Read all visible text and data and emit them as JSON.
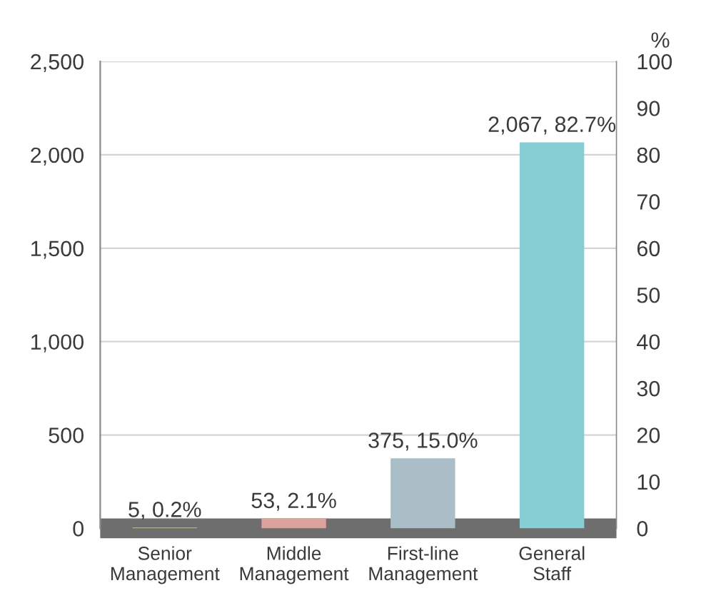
{
  "chart_data": {
    "type": "bar",
    "categories": [
      "Senior\nManagement",
      "Middle\nManagement",
      "First-line\nManagement",
      "General\nStaff"
    ],
    "values": [
      5,
      53,
      375,
      2067
    ],
    "colors": [
      "#b9bd3c",
      "#dda29c",
      "#a9bec6",
      "#86ced3"
    ],
    "value_labels": [
      "5, 0.2%",
      "53, 2.1%",
      "375, 15.0%",
      "2,067, 82.7%"
    ],
    "ylim": [
      0,
      2500
    ],
    "yticks": [
      {
        "value": 0,
        "label": "0"
      },
      {
        "value": 500,
        "label": "500"
      },
      {
        "value": 1000,
        "label": "1,000"
      },
      {
        "value": 1500,
        "label": "1,500"
      },
      {
        "value": 2000,
        "label": "2,000"
      },
      {
        "value": 2500,
        "label": "2,500"
      }
    ],
    "y2label": "%",
    "y2lim": [
      0,
      100
    ],
    "y2ticks": [
      0,
      10,
      20,
      30,
      40,
      50,
      60,
      70,
      80,
      90,
      100
    ],
    "grid": "y",
    "legend": false
  }
}
